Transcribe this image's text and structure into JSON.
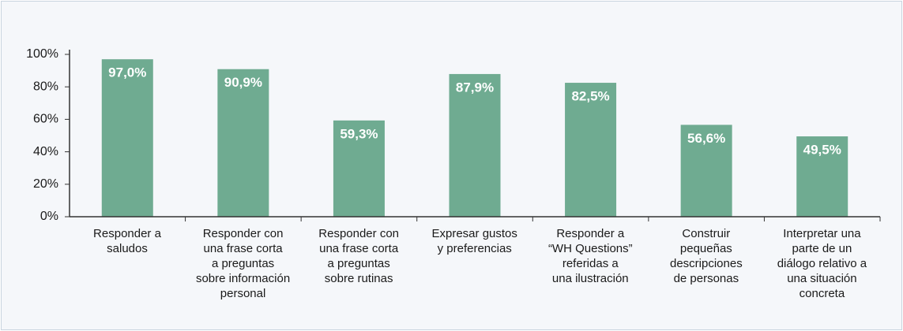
{
  "chart_data": {
    "type": "bar",
    "categories": [
      "Responder a\nsaludos",
      "Responder con\nuna frase corta\na preguntas\nsobre información\npersonal",
      "Responder con\nuna frase corta\na preguntas\nsobre rutinas",
      "Expresar gustos\ny preferencias",
      "Responder a\n“WH Questions”\nreferidas a\nuna ilustración",
      "Construir\npequeñas\ndescripciones\nde personas",
      "Interpretar una\nparte de un\ndiálogo relativo a\nuna situación\nconcreta"
    ],
    "values": [
      97.0,
      90.9,
      59.3,
      87.9,
      82.5,
      56.6,
      49.5
    ],
    "value_labels": [
      "97,0%",
      "90,9%",
      "59,3%",
      "87,9%",
      "82,5%",
      "56,6%",
      "49,5%"
    ],
    "color": "#6fab91",
    "ylim": [
      0,
      100
    ],
    "yticks": [
      {
        "value": 0,
        "label": "0%"
      },
      {
        "value": 20,
        "label": "20%"
      },
      {
        "value": 40,
        "label": "40%"
      },
      {
        "value": 60,
        "label": "60%"
      },
      {
        "value": 80,
        "label": "80%"
      },
      {
        "value": 100,
        "label": "100%"
      }
    ],
    "grid": false
  }
}
